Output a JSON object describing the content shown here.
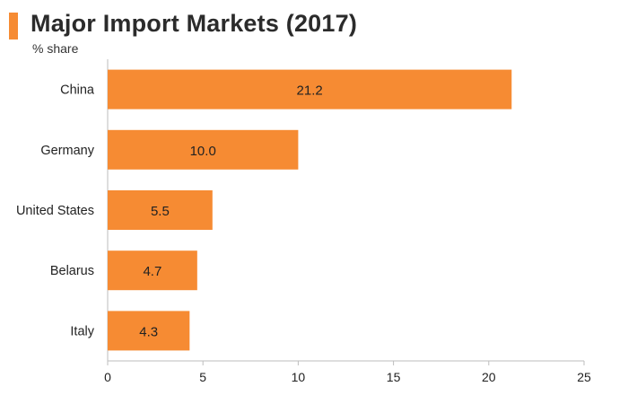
{
  "colors": {
    "bar": "#f68b33",
    "accent": "#f68b33",
    "axis": "#bdbdbd",
    "label": "#222222"
  },
  "chart_data": {
    "type": "bar",
    "orientation": "horizontal",
    "title": "Major Import Markets (2017)",
    "subtitle": "% share",
    "categories": [
      "China",
      "Germany",
      "United States",
      "Belarus",
      "Italy"
    ],
    "values": [
      21.2,
      10.0,
      5.5,
      4.7,
      4.3
    ],
    "value_labels": [
      "21.2",
      "10.0",
      "5.5",
      "4.7",
      "4.3"
    ],
    "xlim": [
      0,
      25
    ],
    "xticks": [
      0,
      5,
      10,
      15,
      20,
      25
    ],
    "grid": false,
    "legend": "none"
  }
}
